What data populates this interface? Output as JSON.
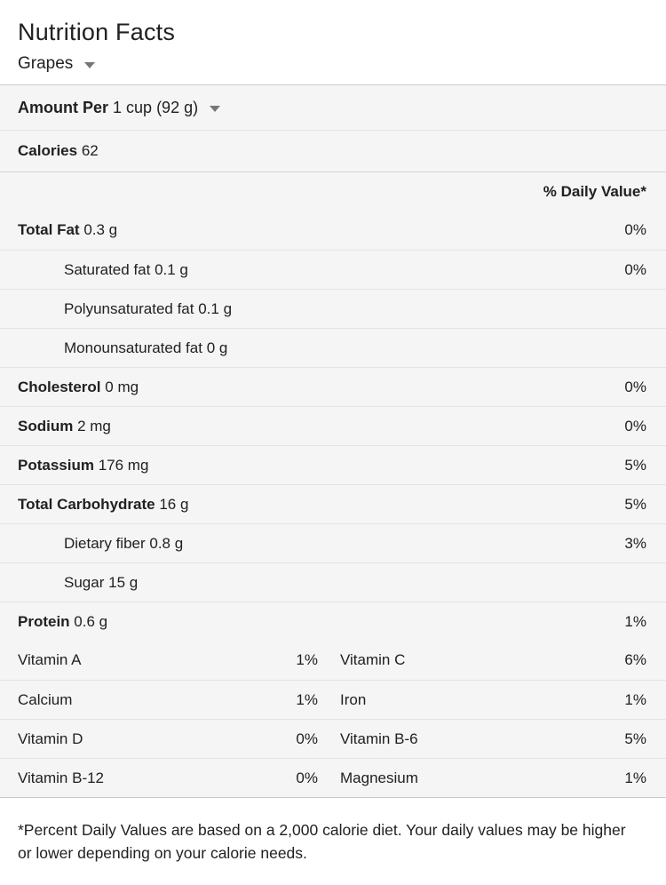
{
  "header": {
    "title": "Nutrition Facts",
    "food_selector": "Grapes"
  },
  "serving": {
    "prefix": "Amount Per",
    "value": "1 cup (92 g)"
  },
  "calories": {
    "label": "Calories",
    "value": "62"
  },
  "daily_value_header": "% Daily Value*",
  "nutrients": [
    {
      "label": "Total Fat",
      "amount": "0.3 g",
      "dv": "0%",
      "bold": true,
      "indent": false,
      "sect": true
    },
    {
      "label": "Saturated fat",
      "amount": "0.1 g",
      "dv": "0%",
      "bold": false,
      "indent": true,
      "sect": false
    },
    {
      "label": "Polyunsaturated fat",
      "amount": "0.1 g",
      "dv": "",
      "bold": false,
      "indent": true,
      "sect": false
    },
    {
      "label": "Monounsaturated fat",
      "amount": "0 g",
      "dv": "",
      "bold": false,
      "indent": true,
      "sect": false
    },
    {
      "label": "Cholesterol",
      "amount": "0 mg",
      "dv": "0%",
      "bold": true,
      "indent": false,
      "sect": false
    },
    {
      "label": "Sodium",
      "amount": "2 mg",
      "dv": "0%",
      "bold": true,
      "indent": false,
      "sect": false
    },
    {
      "label": "Potassium",
      "amount": "176 mg",
      "dv": "5%",
      "bold": true,
      "indent": false,
      "sect": false
    },
    {
      "label": "Total Carbohydrate",
      "amount": "16 g",
      "dv": "5%",
      "bold": true,
      "indent": false,
      "sect": false
    },
    {
      "label": "Dietary fiber",
      "amount": "0.8 g",
      "dv": "3%",
      "bold": false,
      "indent": true,
      "sect": false
    },
    {
      "label": "Sugar",
      "amount": "15 g",
      "dv": "",
      "bold": false,
      "indent": true,
      "sect": false
    },
    {
      "label": "Protein",
      "amount": "0.6 g",
      "dv": "1%",
      "bold": true,
      "indent": false,
      "sect": false
    }
  ],
  "micronutrients": [
    {
      "left_label": "Vitamin A",
      "left_dv": "1%",
      "right_label": "Vitamin C",
      "right_dv": "6%"
    },
    {
      "left_label": "Calcium",
      "left_dv": "1%",
      "right_label": "Iron",
      "right_dv": "1%"
    },
    {
      "left_label": "Vitamin D",
      "left_dv": "0%",
      "right_label": "Vitamin B-6",
      "right_dv": "5%"
    },
    {
      "left_label": "Vitamin B-12",
      "left_dv": "0%",
      "right_label": "Magnesium",
      "right_dv": "1%"
    }
  ],
  "footnote": "*Percent Daily Values are based on a 2,000 calorie diet. Your daily values may be higher or lower depending on your calorie needs."
}
